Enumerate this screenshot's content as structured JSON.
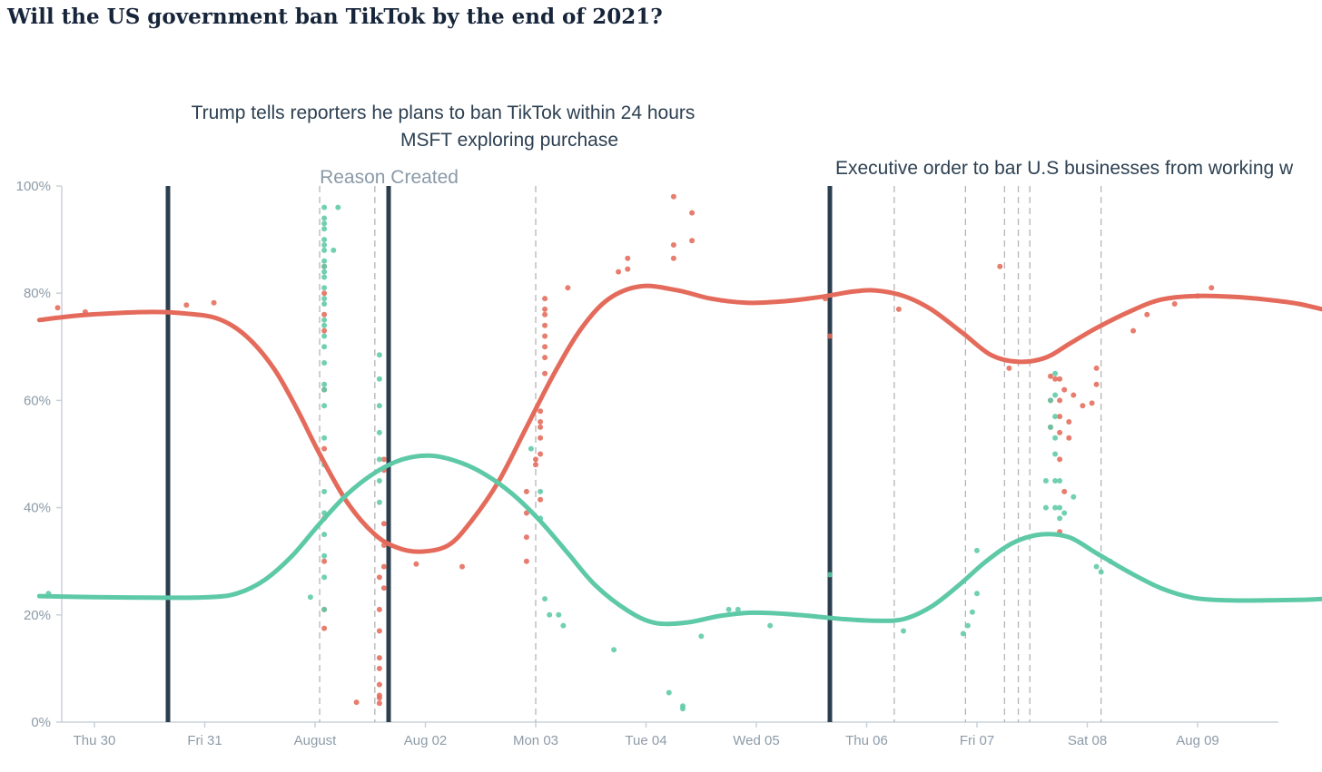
{
  "page": {
    "title": "Will the US government ban TikTok by the end of 2021?"
  },
  "colors": {
    "yes": "#e46b5b",
    "no": "#5ec9a7",
    "event_line": "#2b3f4f",
    "reason_line": "#b5b5b5",
    "axis": "#c9d2da",
    "text": "#2d4052",
    "muted": "#8d9ba8"
  },
  "chart_data": {
    "type": "line",
    "title": "Will the US government ban TikTok by the end of 2021?",
    "x_unit": "hours since Thu 30 00:00",
    "xlim": [
      -12,
      268
    ],
    "ylim": [
      0,
      100
    ],
    "y_ticks": [
      0,
      20,
      40,
      60,
      80,
      100
    ],
    "y_tick_labels": [
      "0%",
      "20%",
      "40%",
      "60%",
      "80%",
      "100%"
    ],
    "x_ticks": [
      0,
      24,
      48,
      72,
      96,
      120,
      144,
      168,
      192,
      216,
      240
    ],
    "x_tick_labels": [
      "Thu 30",
      "Fri 31",
      "August",
      "Aug 02",
      "Mon 03",
      "Tue 04",
      "Wed 05",
      "Thu 06",
      "Fri 07",
      "Sat 08",
      "Aug 09"
    ],
    "grid": false,
    "series": [
      {
        "key": "yes",
        "points": [
          [
            -12,
            75
          ],
          [
            -4,
            75.8
          ],
          [
            5,
            76.3
          ],
          [
            13,
            76.5
          ],
          [
            20,
            76.2
          ],
          [
            27,
            75.2
          ],
          [
            33,
            72
          ],
          [
            39,
            66
          ],
          [
            44,
            58.5
          ],
          [
            49,
            50
          ],
          [
            55,
            41
          ],
          [
            61,
            35
          ],
          [
            66,
            32.5
          ],
          [
            71,
            31.8
          ],
          [
            77,
            33
          ],
          [
            82,
            37.5
          ],
          [
            88,
            45
          ],
          [
            94,
            55
          ],
          [
            100,
            65
          ],
          [
            106,
            73.5
          ],
          [
            112,
            79
          ],
          [
            119,
            81.3
          ],
          [
            127,
            80.5
          ],
          [
            134,
            79
          ],
          [
            142,
            78.2
          ],
          [
            150,
            78.5
          ],
          [
            158,
            79.3
          ],
          [
            165,
            80.3
          ],
          [
            170,
            80.5
          ],
          [
            176,
            79.5
          ],
          [
            182,
            77
          ],
          [
            189,
            72.5
          ],
          [
            195,
            68.5
          ],
          [
            201,
            67.2
          ],
          [
            207,
            68
          ],
          [
            212,
            70.5
          ],
          [
            218,
            73.5
          ],
          [
            225,
            76.5
          ],
          [
            232,
            78.8
          ],
          [
            240,
            79.5
          ],
          [
            248,
            79.3
          ],
          [
            255,
            78.8
          ],
          [
            262,
            78
          ],
          [
            268,
            76.8
          ]
        ],
        "dots": [
          [
            -8,
            77.3
          ],
          [
            -2,
            76.5
          ],
          [
            20,
            77.8
          ],
          [
            26,
            78.2
          ],
          [
            50,
            85
          ],
          [
            50,
            80
          ],
          [
            50,
            76
          ],
          [
            50,
            73
          ],
          [
            50,
            62
          ],
          [
            50,
            51
          ],
          [
            50,
            38
          ],
          [
            50,
            30
          ],
          [
            50,
            21
          ],
          [
            50,
            17.5
          ],
          [
            57,
            3.7
          ],
          [
            62,
            27
          ],
          [
            62,
            21
          ],
          [
            62,
            17
          ],
          [
            62,
            12
          ],
          [
            62,
            10
          ],
          [
            62,
            7
          ],
          [
            62,
            5
          ],
          [
            62,
            4.5
          ],
          [
            62,
            3.5
          ],
          [
            63,
            49
          ],
          [
            63,
            47
          ],
          [
            63,
            37
          ],
          [
            63,
            33
          ],
          [
            63,
            29
          ],
          [
            63,
            25
          ],
          [
            70,
            29.5
          ],
          [
            80,
            29
          ],
          [
            94,
            43
          ],
          [
            94,
            39
          ],
          [
            94,
            34.5
          ],
          [
            94,
            30
          ],
          [
            96,
            49
          ],
          [
            96,
            48
          ],
          [
            97,
            56
          ],
          [
            97,
            55
          ],
          [
            97,
            53
          ],
          [
            97,
            50
          ],
          [
            97,
            41.5
          ],
          [
            97,
            58
          ],
          [
            98,
            77
          ],
          [
            98,
            76
          ],
          [
            98,
            74
          ],
          [
            98,
            72
          ],
          [
            98,
            70
          ],
          [
            98,
            68
          ],
          [
            98,
            65
          ],
          [
            98,
            79
          ],
          [
            103,
            81
          ],
          [
            114,
            84
          ],
          [
            116,
            84.5
          ],
          [
            116,
            86.5
          ],
          [
            126,
            86.5
          ],
          [
            126,
            89
          ],
          [
            126,
            98
          ],
          [
            130,
            95
          ],
          [
            130,
            89.8
          ],
          [
            159,
            79
          ],
          [
            160,
            72
          ],
          [
            175,
            77
          ],
          [
            197,
            85
          ],
          [
            199,
            66
          ],
          [
            208,
            64.5
          ],
          [
            208,
            60
          ],
          [
            208,
            55
          ],
          [
            209,
            64
          ],
          [
            210,
            64
          ],
          [
            210,
            60
          ],
          [
            210,
            57
          ],
          [
            210,
            54
          ],
          [
            210,
            49
          ],
          [
            210,
            35.5
          ],
          [
            211,
            62
          ],
          [
            211,
            43
          ],
          [
            212,
            53
          ],
          [
            212,
            56
          ],
          [
            213,
            61
          ],
          [
            215,
            59
          ],
          [
            217,
            59.5
          ],
          [
            218,
            66
          ],
          [
            218,
            63
          ],
          [
            226,
            73
          ],
          [
            229,
            76
          ],
          [
            235,
            78
          ],
          [
            240,
            79.5
          ],
          [
            243,
            81
          ]
        ]
      },
      {
        "key": "no",
        "points": [
          [
            -12,
            23.5
          ],
          [
            0,
            23.3
          ],
          [
            15,
            23.2
          ],
          [
            25,
            23.3
          ],
          [
            31,
            24
          ],
          [
            37,
            26.5
          ],
          [
            43,
            31
          ],
          [
            49,
            37
          ],
          [
            55,
            42.5
          ],
          [
            61,
            46.5
          ],
          [
            67,
            49
          ],
          [
            73,
            49.7
          ],
          [
            79,
            48.6
          ],
          [
            85,
            46.2
          ],
          [
            91,
            42.5
          ],
          [
            97,
            37.5
          ],
          [
            103,
            31.5
          ],
          [
            109,
            25.5
          ],
          [
            116,
            20.8
          ],
          [
            122,
            18.5
          ],
          [
            129,
            18.6
          ],
          [
            136,
            19.8
          ],
          [
            143,
            20.4
          ],
          [
            150,
            20.2
          ],
          [
            157,
            19.7
          ],
          [
            163,
            19.2
          ],
          [
            170,
            18.9
          ],
          [
            176,
            19.2
          ],
          [
            182,
            21.5
          ],
          [
            188,
            25.5
          ],
          [
            194,
            30
          ],
          [
            200,
            33.5
          ],
          [
            206,
            35
          ],
          [
            212,
            34.5
          ],
          [
            218,
            31.5
          ],
          [
            225,
            28
          ],
          [
            232,
            25
          ],
          [
            239,
            23.2
          ],
          [
            247,
            22.7
          ],
          [
            255,
            22.7
          ],
          [
            262,
            22.8
          ],
          [
            268,
            23
          ]
        ],
        "dots": [
          [
            -10,
            24
          ],
          [
            47,
            23.3
          ],
          [
            50,
            96
          ],
          [
            50,
            94
          ],
          [
            50,
            93
          ],
          [
            50,
            92
          ],
          [
            50,
            90
          ],
          [
            50,
            89
          ],
          [
            50,
            88
          ],
          [
            50,
            86
          ],
          [
            50,
            85
          ],
          [
            50,
            84
          ],
          [
            50,
            83
          ],
          [
            50,
            81
          ],
          [
            50,
            79
          ],
          [
            50,
            78
          ],
          [
            50,
            75
          ],
          [
            50,
            74
          ],
          [
            50,
            72
          ],
          [
            50,
            70
          ],
          [
            50,
            67
          ],
          [
            50,
            63
          ],
          [
            50,
            62
          ],
          [
            50,
            59
          ],
          [
            50,
            53
          ],
          [
            50,
            48
          ],
          [
            50,
            43
          ],
          [
            50,
            39
          ],
          [
            50,
            35
          ],
          [
            50,
            31
          ],
          [
            50,
            27
          ],
          [
            50,
            21
          ],
          [
            52,
            88
          ],
          [
            53,
            96
          ],
          [
            62,
            68.5
          ],
          [
            62,
            64
          ],
          [
            62,
            59
          ],
          [
            62,
            54
          ],
          [
            62,
            49
          ],
          [
            62,
            45
          ],
          [
            62,
            41
          ],
          [
            95,
            51
          ],
          [
            97,
            43
          ],
          [
            97,
            38
          ],
          [
            98,
            23
          ],
          [
            99,
            20
          ],
          [
            101,
            20
          ],
          [
            102,
            18
          ],
          [
            113,
            13.5
          ],
          [
            125,
            5.5
          ],
          [
            128,
            3
          ],
          [
            128,
            2.5
          ],
          [
            132,
            16
          ],
          [
            138,
            21
          ],
          [
            140,
            21
          ],
          [
            147,
            18
          ],
          [
            160,
            27.5
          ],
          [
            176,
            17
          ],
          [
            189,
            16.5
          ],
          [
            190,
            18
          ],
          [
            191,
            20.5
          ],
          [
            192,
            24
          ],
          [
            192,
            32
          ],
          [
            207,
            45
          ],
          [
            207,
            40
          ],
          [
            208,
            60
          ],
          [
            208,
            55
          ],
          [
            209,
            65
          ],
          [
            209,
            61
          ],
          [
            209,
            57
          ],
          [
            209,
            53
          ],
          [
            209,
            50
          ],
          [
            209,
            45
          ],
          [
            209,
            40
          ],
          [
            210,
            45
          ],
          [
            210,
            40
          ],
          [
            210,
            38
          ],
          [
            211,
            39
          ],
          [
            213,
            42
          ],
          [
            218,
            29
          ],
          [
            219,
            28
          ],
          [
            221,
            30
          ]
        ]
      }
    ],
    "events": [
      {
        "x": 16,
        "label": "Trump tells reporters he plans to ban TikTok within 24 hours"
      },
      {
        "x": 64,
        "label": "MSFT exploring purchase"
      },
      {
        "x": 160,
        "label": "Executive order to bar U.S businesses from working w"
      }
    ],
    "reason_lines": [
      49,
      61,
      96,
      174,
      189.5,
      198,
      201,
      203.5,
      219
    ],
    "reason_label": "Reason Created"
  }
}
